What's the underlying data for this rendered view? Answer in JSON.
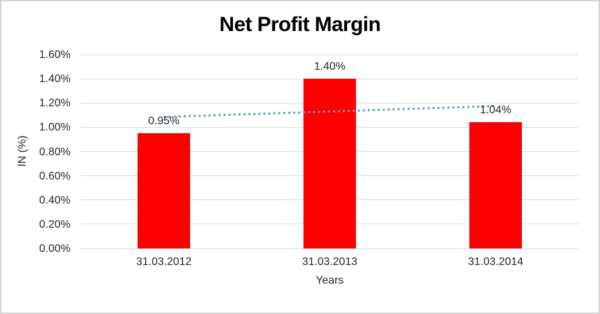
{
  "chart_data": {
    "type": "bar",
    "title": "Net Profit Margin",
    "categories": [
      "31.03.2012",
      "31.03.2013",
      "31.03.2014"
    ],
    "values": [
      0.95,
      1.4,
      1.04
    ],
    "data_labels": [
      "0.95%",
      "1.40%",
      "1.04%"
    ],
    "xlabel": "Years",
    "ylabel": "IN (%)",
    "ylim": [
      0,
      1.6
    ],
    "y_tick_step": 0.2,
    "y_tick_labels": [
      "0.00%",
      "0.20%",
      "0.40%",
      "0.60%",
      "0.80%",
      "1.00%",
      "1.20%",
      "1.40%",
      "1.60%"
    ],
    "grid": true,
    "legend": "none",
    "bar_color": "#ff0000",
    "gridline_color": "#d9d9d9",
    "border_color": "#d3d3d3",
    "text_color": "#262626",
    "title_color": "#000000",
    "trendline": {
      "type": "linear",
      "style": "dotted",
      "color": "#5b9bd5",
      "start_value": 1.085,
      "end_value": 1.175
    }
  }
}
